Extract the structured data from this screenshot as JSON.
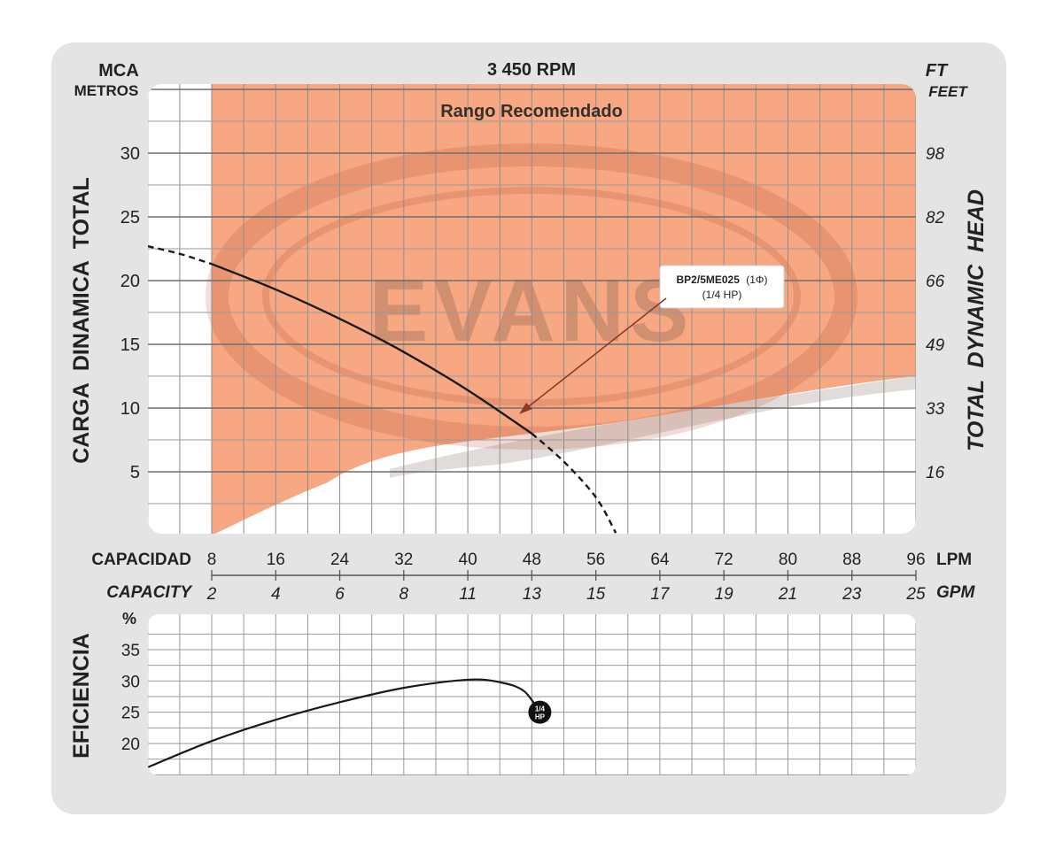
{
  "chart_data": [
    {
      "type": "line",
      "panel": "head",
      "top_title": "3 450 RPM",
      "left_unit_top": "MCA",
      "left_unit_bottom": "METROS",
      "right_unit_top": "FT",
      "right_unit_bottom": "FEET",
      "ylabel": "CARGA  DINAMICA  TOTAL",
      "ylabel_right": "TOTAL  DYNAMIC  HEAD",
      "yticks": [
        5,
        10,
        15,
        20,
        25,
        30
      ],
      "yticks_right": [
        "16",
        "33",
        "49",
        "66",
        "82",
        "98"
      ],
      "x_lpm_label": "CAPACIDAD",
      "x_lpm_unit": "LPM",
      "x_lpm_ticks": [
        8,
        16,
        24,
        32,
        40,
        48,
        56,
        64,
        72,
        80,
        88,
        96
      ],
      "x_gpm_label": "CAPACITY",
      "x_gpm_unit": "GPM",
      "x_gpm_ticks": [
        "2",
        "4",
        "6",
        "8",
        "11",
        "13",
        "15",
        "17",
        "19",
        "21",
        "23",
        "25"
      ],
      "xlim": [
        0,
        96
      ],
      "ylim": [
        0,
        35
      ],
      "region_label": "Rango Recomendado",
      "watermark": "EVANS",
      "annotation": {
        "line1": "BP2/5ME025",
        "phase": "(1Φ)",
        "line2": "(1/4 HP)"
      },
      "series": [
        {
          "name": "BP2/5ME025",
          "style": "solid",
          "x": [
            8,
            16,
            24,
            32,
            40,
            48
          ],
          "y": [
            21.3,
            19.3,
            17.0,
            14.4,
            11.4,
            8.0
          ]
        },
        {
          "style": "dashed",
          "x": [
            0,
            4,
            8
          ],
          "y": [
            22.7,
            22.1,
            21.3
          ]
        },
        {
          "style": "dashed",
          "x": [
            48,
            52,
            56,
            58.5
          ],
          "y": [
            8.0,
            5.8,
            3.0,
            0.2
          ]
        }
      ],
      "region_colors": {
        "fill": "#f7a882",
        "fill_light": "#f9c8ad",
        "curve": "#1a1a1a"
      }
    },
    {
      "type": "line",
      "panel": "efficiency",
      "ylabel": "EFICIENCIA",
      "unit": "%",
      "yticks": [
        20,
        25,
        30,
        35
      ],
      "xlim": [
        0,
        96
      ],
      "ylim": [
        15,
        38
      ],
      "marker": {
        "x": 49,
        "y": 25,
        "text_top": "1/4",
        "text_bottom": "HP"
      },
      "series": [
        {
          "x": [
            0,
            8,
            16,
            24,
            32,
            40,
            44,
            47,
            49
          ],
          "y": [
            16.2,
            20.4,
            23.8,
            26.6,
            28.9,
            30.2,
            29.8,
            28.4,
            25.0
          ]
        }
      ]
    }
  ]
}
